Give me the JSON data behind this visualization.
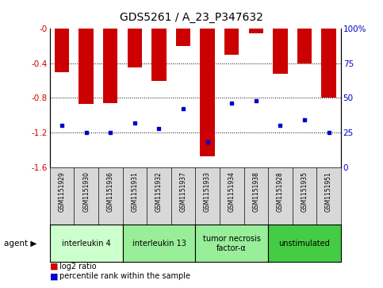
{
  "title": "GDS5261 / A_23_P347632",
  "samples": [
    "GSM1151929",
    "GSM1151930",
    "GSM1151936",
    "GSM1151931",
    "GSM1151932",
    "GSM1151937",
    "GSM1151933",
    "GSM1151934",
    "GSM1151938",
    "GSM1151928",
    "GSM1151935",
    "GSM1151951"
  ],
  "log2_ratio": [
    -0.5,
    -0.87,
    -0.86,
    -0.45,
    -0.6,
    -0.2,
    -1.48,
    -0.3,
    -0.05,
    -0.52,
    -0.4,
    -0.8
  ],
  "percentile_rank": [
    30,
    25,
    25,
    32,
    28,
    42,
    18,
    46,
    48,
    30,
    34,
    25
  ],
  "ylim_left": [
    -1.6,
    0.0
  ],
  "ylim_right": [
    0,
    100
  ],
  "bar_color": "#cc0000",
  "dot_color": "#0000cc",
  "bg_color": "#d8d8d8",
  "plot_bg": "#ffffff",
  "left_label_color": "#cc0000",
  "right_label_color": "#0000cc",
  "legend_log2": "log2 ratio",
  "legend_pct": "percentile rank within the sample",
  "yticks_left": [
    0.0,
    -0.4,
    -0.8,
    -1.2,
    -1.6
  ],
  "ytick_labels_left": [
    "-0",
    "-0.4",
    "-0.8",
    "-1.2",
    "-1.6"
  ],
  "yticks_right": [
    0,
    25,
    50,
    75,
    100
  ],
  "ytick_labels_right": [
    "0",
    "25",
    "50",
    "75",
    "100%"
  ],
  "group_info": [
    {
      "label": "interleukin 4",
      "start": 0,
      "end": 3,
      "color": "#ccffcc"
    },
    {
      "label": "interleukin 13",
      "start": 3,
      "end": 6,
      "color": "#99ee99"
    },
    {
      "label": "tumor necrosis\nfactor-α",
      "start": 6,
      "end": 9,
      "color": "#99ee99"
    },
    {
      "label": "unstimulated",
      "start": 9,
      "end": 12,
      "color": "#44cc44"
    }
  ]
}
